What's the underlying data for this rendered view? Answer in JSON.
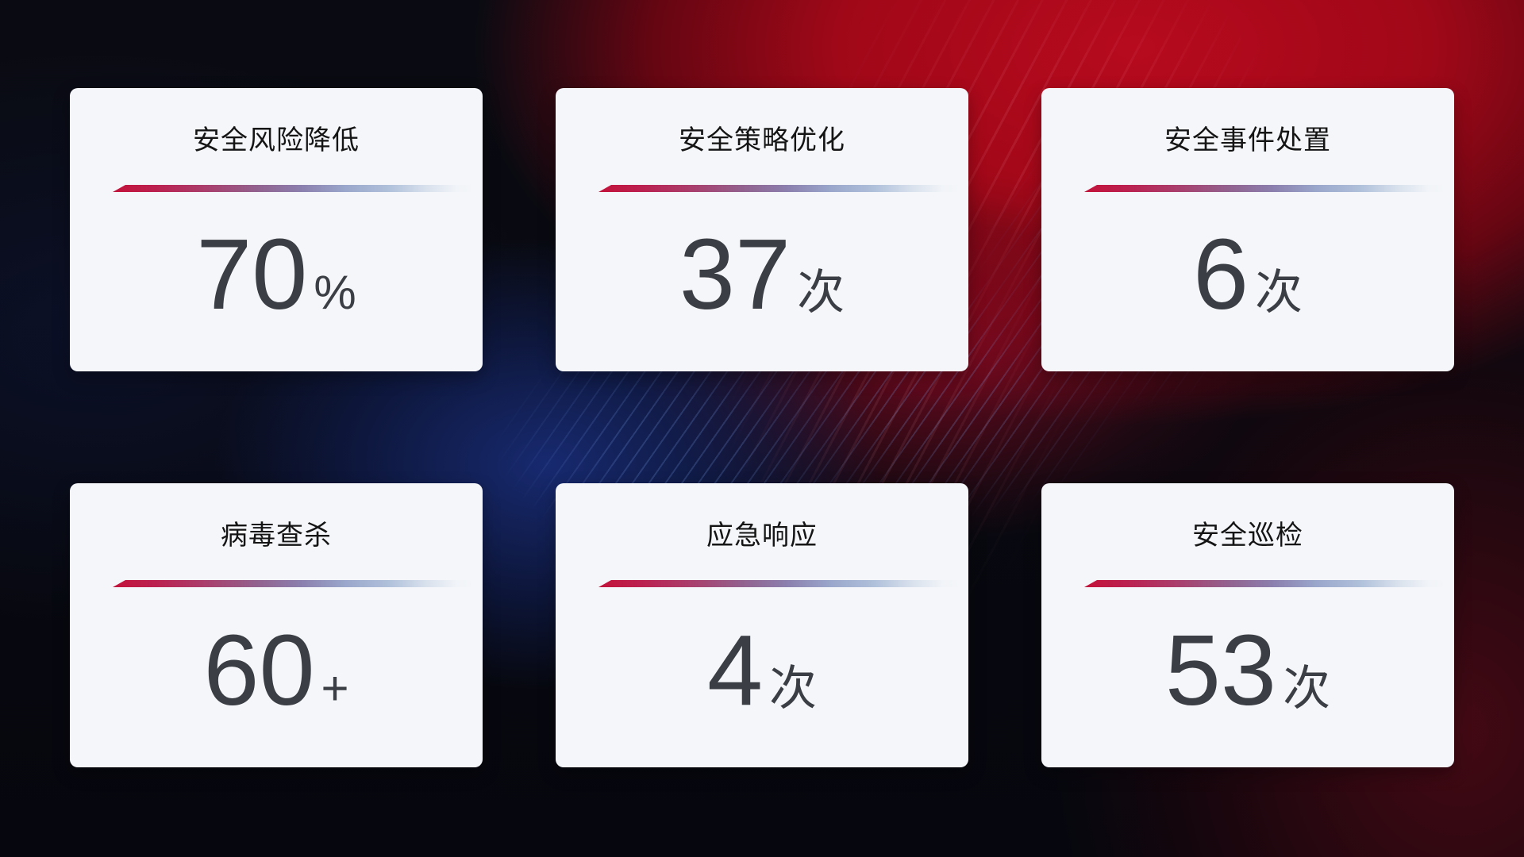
{
  "theme": {
    "background_base": "#05060c",
    "background_red": "#b70a1e",
    "background_blue": "#16275f",
    "card_background": "#f4f6f9",
    "title_color": "#151515",
    "value_color": "#3b3e44",
    "divider_start": "#c3123a",
    "divider_end": "#afc0da"
  },
  "cards": [
    {
      "title": "安全风险降低",
      "value": "70",
      "unit": "%"
    },
    {
      "title": "安全策略优化",
      "value": "37",
      "unit": "次"
    },
    {
      "title": "安全事件处置",
      "value": "6",
      "unit": "次"
    },
    {
      "title": "病毒查杀",
      "value": "60",
      "unit": "+"
    },
    {
      "title": "应急响应",
      "value": "4",
      "unit": "次"
    },
    {
      "title": "安全巡检",
      "value": "53",
      "unit": "次"
    }
  ]
}
